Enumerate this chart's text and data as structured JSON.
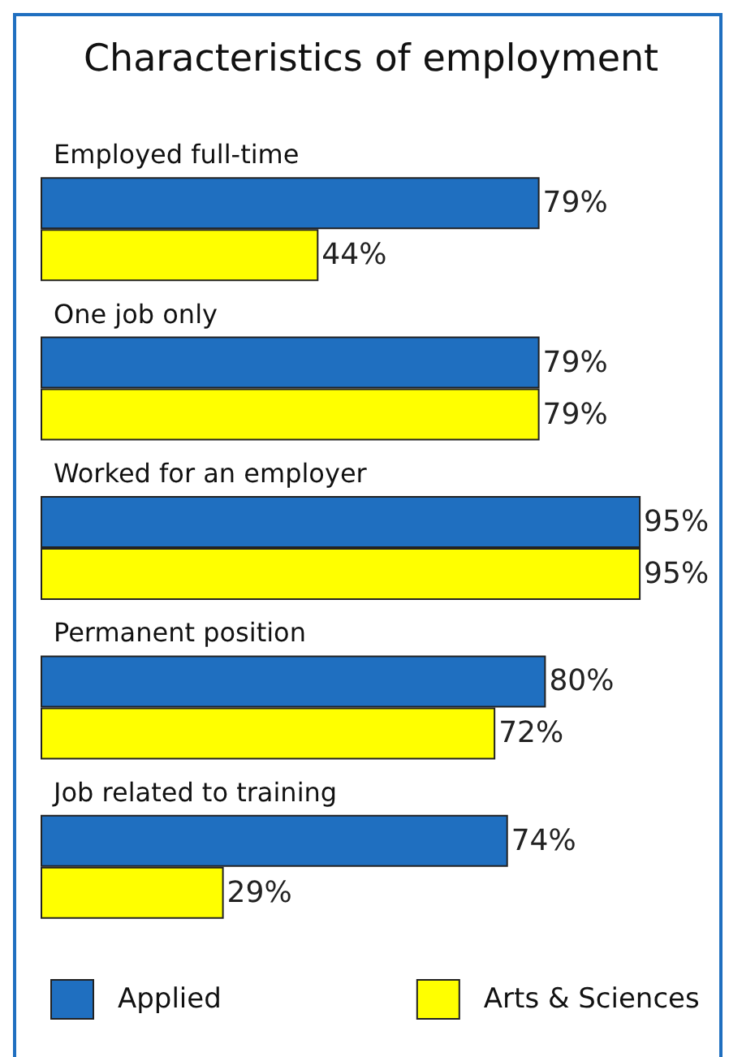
{
  "chart_data": {
    "type": "bar",
    "orientation": "horizontal",
    "title": "Characteristics of employment",
    "categories": [
      "Employed full-time",
      "One job only",
      "Worked for an employer",
      "Permanent position",
      "Job related to training"
    ],
    "series": [
      {
        "name": "Applied",
        "color": "#1f6fc0",
        "values": [
          79,
          79,
          95,
          80,
          74
        ],
        "value_labels": [
          "79%",
          "79%",
          "95%",
          "80%",
          "74%"
        ]
      },
      {
        "name": "Arts & Sciences",
        "color": "#ffff00",
        "values": [
          44,
          79,
          95,
          72,
          29
        ],
        "value_labels": [
          "44%",
          "79%",
          "95%",
          "72%",
          "29%"
        ]
      }
    ],
    "legend": "bottom",
    "grid": false
  }
}
